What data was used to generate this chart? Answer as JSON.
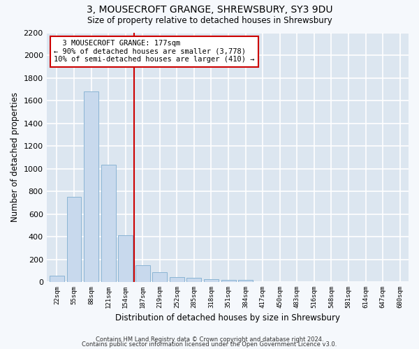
{
  "title": "3, MOUSECROFT GRANGE, SHREWSBURY, SY3 9DU",
  "subtitle": "Size of property relative to detached houses in Shrewsbury",
  "xlabel": "Distribution of detached houses by size in Shrewsbury",
  "ylabel": "Number of detached properties",
  "footer1": "Contains HM Land Registry data © Crown copyright and database right 2024.",
  "footer2": "Contains public sector information licensed under the Open Government Licence v3.0.",
  "annotation_line1": "3 MOUSECROFT GRANGE: 177sqm",
  "annotation_line2": "← 90% of detached houses are smaller (3,778)",
  "annotation_line3": "10% of semi-detached houses are larger (410) →",
  "bins": [
    22,
    55,
    88,
    121,
    154,
    187,
    219,
    252,
    285,
    318,
    351,
    384,
    417,
    450,
    483,
    516,
    548,
    581,
    614,
    647,
    680
  ],
  "counts": [
    55,
    750,
    1680,
    1035,
    410,
    150,
    85,
    45,
    35,
    25,
    18,
    20,
    0,
    0,
    0,
    0,
    0,
    0,
    0,
    0
  ],
  "bar_color": "#c8d9ed",
  "bar_edge_color": "#8ab4d4",
  "vline_color": "#cc0000",
  "annotation_box_color": "#ffffff",
  "annotation_box_edge": "#cc0000",
  "bg_color": "#dce6f0",
  "grid_color": "#ffffff",
  "fig_bg_color": "#f5f8fc",
  "ylim": [
    0,
    2200
  ],
  "yticks": [
    0,
    200,
    400,
    600,
    800,
    1000,
    1200,
    1400,
    1600,
    1800,
    2000,
    2200
  ]
}
